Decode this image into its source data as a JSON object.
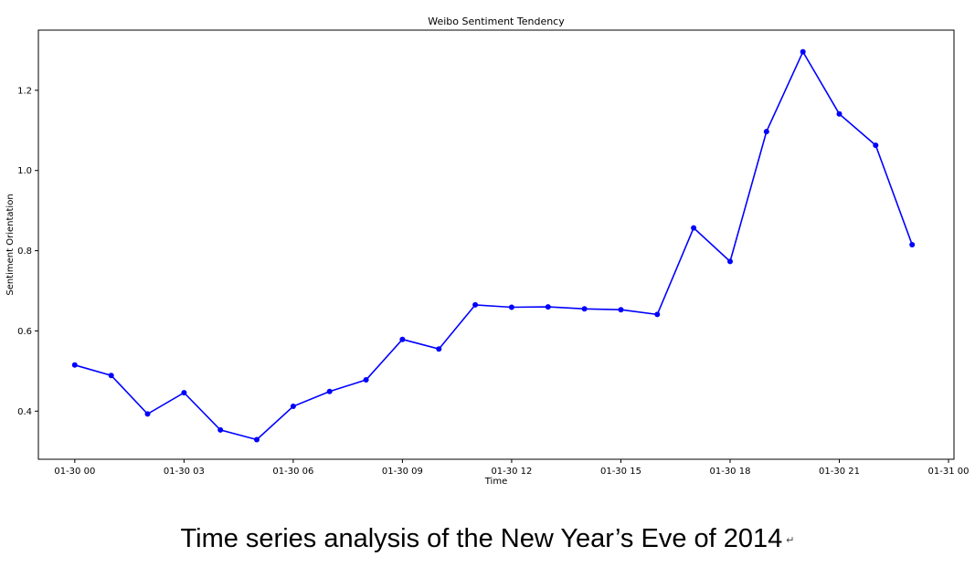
{
  "chart_data": {
    "type": "line",
    "title": "Weibo Sentiment Tendency",
    "xlabel": "Time",
    "ylabel": "Sentiment Orientation",
    "x_ticks": [
      "01-30 00",
      "01-30 03",
      "01-30 06",
      "01-30 09",
      "01-30 12",
      "01-30 15",
      "01-30 18",
      "01-30 21",
      "01-31 00"
    ],
    "y_ticks": [
      "0.4",
      "0.6",
      "0.8",
      "1.0",
      "1.2"
    ],
    "xlim": [
      "2014-01-29 23:00",
      "2014-01-31 00:09"
    ],
    "ylim": [
      0.28,
      1.35
    ],
    "grid": false,
    "color": "#0000ff",
    "series": [
      {
        "x": [
          "2014-01-30 00:00",
          "2014-01-30 01:00",
          "2014-01-30 02:00",
          "2014-01-30 03:00",
          "2014-01-30 04:00",
          "2014-01-30 05:00",
          "2014-01-30 06:00",
          "2014-01-30 07:00",
          "2014-01-30 08:00",
          "2014-01-30 09:00",
          "2014-01-30 10:00",
          "2014-01-30 11:00",
          "2014-01-30 12:00",
          "2014-01-30 13:00",
          "2014-01-30 14:00",
          "2014-01-30 15:00",
          "2014-01-30 16:00",
          "2014-01-30 17:00",
          "2014-01-30 18:00",
          "2014-01-30 19:00",
          "2014-01-30 20:00",
          "2014-01-30 21:00",
          "2014-01-30 22:00",
          "2014-01-30 23:00"
        ],
        "values": [
          0.515,
          0.489,
          0.393,
          0.446,
          0.353,
          0.329,
          0.412,
          0.449,
          0.478,
          0.579,
          0.555,
          0.665,
          0.659,
          0.66,
          0.655,
          0.653,
          0.641,
          0.857,
          0.773,
          1.097,
          1.296,
          1.141,
          1.063,
          0.815
        ]
      }
    ]
  },
  "caption": {
    "text": "Time series analysis of the New Year’s Eve of 2014",
    "mark": "↵"
  }
}
